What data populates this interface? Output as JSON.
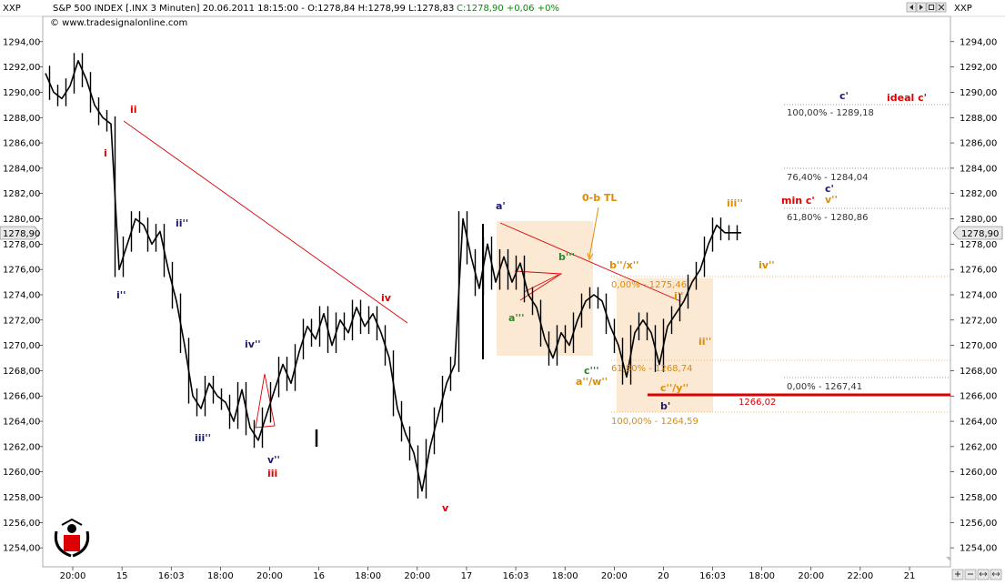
{
  "header": {
    "symbol": "XXP",
    "info": "S&P 500 INDEX [.INX  3 Minuten] 20.06.2011 18:15:00 - O:1278,84 H:1278,99 L:1278,83",
    "close_info": "C:1278,90 +0,06 +0%",
    "copyright": "© www.tradesignalonline.com"
  },
  "colors": {
    "price": "#000000",
    "red": "#dd0000",
    "navy": "#1a1a6e",
    "orange": "#e08c00",
    "green": "#2a8a2a",
    "peach": "#fbe3c9"
  },
  "chart_data": {
    "type": "line",
    "symbol": "XXP",
    "ylim": [
      1252.5,
      1296.0
    ],
    "x_ticks": [
      "20:00",
      "15",
      "16:03",
      "18:00",
      "20:00",
      "16",
      "18:00",
      "20:00",
      "17",
      "16:03",
      "18:00",
      "20:00",
      "20",
      "16:03",
      "18:00",
      "20:00",
      "22:00",
      "21"
    ],
    "y_ticks": [
      "1254,00",
      "1256,00",
      "1258,00",
      "1260,00",
      "1262,00",
      "1264,00",
      "1266,00",
      "1268,00",
      "1270,00",
      "1272,00",
      "1274,00",
      "1276,00",
      "1278,00",
      "1280,00",
      "1282,00",
      "1284,00",
      "1286,00",
      "1288,00",
      "1290,00",
      "1292,00",
      "1294,00"
    ],
    "last_price": "1278,90",
    "series": [
      {
        "x": [
          0,
          1,
          2,
          3,
          4,
          5,
          6,
          7,
          8,
          9,
          10,
          11,
          12,
          13,
          14,
          15,
          16,
          17,
          18,
          19,
          20,
          21,
          22,
          23,
          24,
          25,
          26,
          27,
          28,
          29,
          30,
          31,
          32,
          33,
          34,
          35,
          36,
          37,
          38,
          39,
          40,
          41,
          42,
          43,
          44,
          45,
          46,
          47,
          48,
          49,
          50,
          51,
          52,
          53,
          54,
          55,
          56,
          57,
          58,
          59,
          60,
          61,
          62,
          63,
          64,
          65,
          66,
          67,
          68,
          69,
          70,
          71,
          72,
          73,
          74,
          75,
          76,
          77,
          78,
          79,
          80,
          81,
          82,
          83,
          84,
          85,
          86,
          87,
          88,
          89,
          90,
          91,
          92,
          93,
          94,
          95,
          96,
          97,
          98,
          99,
          100,
          101,
          102,
          103
        ],
        "y": [
          1291.5,
          1290.0,
          1289.5,
          1290.5,
          1292.5,
          1291.0,
          1289.0,
          1288.0,
          1287.5,
          1276.0,
          1278.0,
          1280.0,
          1279.5,
          1278.0,
          1279.0,
          1276.0,
          1273.5,
          1270.0,
          1266.0,
          1265.0,
          1267.0,
          1266.0,
          1265.5,
          1264.0,
          1266.5,
          1263.5,
          1262.5,
          1264.5,
          1266.5,
          1268.5,
          1267.0,
          1269.5,
          1271.5,
          1270.5,
          1272.5,
          1270.0,
          1272.0,
          1271.0,
          1273.0,
          1271.5,
          1272.5,
          1271.0,
          1269.0,
          1265.0,
          1263.0,
          1261.5,
          1258.5,
          1262.0,
          1264.5,
          1267.0,
          1268.5,
          1280.0,
          1277.0,
          1274.5,
          1278.0,
          1275.0,
          1277.0,
          1275.0,
          1276.5,
          1274.0,
          1273.0,
          1270.5,
          1269.0,
          1271.0,
          1270.0,
          1272.0,
          1273.5,
          1274.0,
          1273.5,
          1271.5,
          1270.0,
          1267.5,
          1271.0,
          1272.0,
          1271.0,
          1268.5,
          1271.5,
          1272.5,
          1273.5,
          1275.0,
          1276.0,
          1278.0,
          1279.5,
          1278.9,
          1278.9,
          1278.9,
          1278.9,
          1278.9,
          1278.9,
          1278.9,
          1278.9,
          1278.9,
          1278.9,
          1278.9,
          1278.9,
          1278.9,
          1278.9,
          1278.9,
          1278.9,
          1278.9,
          1278.9,
          1278.9,
          1278.9,
          1278.9
        ]
      }
    ],
    "annotations": {
      "wave_labels": [
        {
          "text": "ii",
          "color": "red"
        },
        {
          "text": "i",
          "color": "red"
        },
        {
          "text": "ii''",
          "color": "navy"
        },
        {
          "text": "i''",
          "color": "navy"
        },
        {
          "text": "iv''",
          "color": "navy"
        },
        {
          "text": "iii''",
          "color": "navy"
        },
        {
          "text": "v''",
          "color": "navy"
        },
        {
          "text": "iii",
          "color": "red"
        },
        {
          "text": "iv",
          "color": "red"
        },
        {
          "text": "v",
          "color": "red"
        },
        {
          "text": "a'",
          "color": "navy"
        },
        {
          "text": "0-b TL",
          "color": "orange"
        },
        {
          "text": "b'''",
          "color": "green"
        },
        {
          "text": "a'''",
          "color": "green"
        },
        {
          "text": "c'''",
          "color": "green"
        },
        {
          "text": "a''/w''",
          "color": "orange"
        },
        {
          "text": "b''/x''",
          "color": "orange"
        },
        {
          "text": "i''",
          "color": "orange"
        },
        {
          "text": "c''/y''",
          "color": "orange"
        },
        {
          "text": "b'",
          "color": "navy"
        },
        {
          "text": "ii''",
          "color": "orange"
        },
        {
          "text": "iii''",
          "color": "orange"
        },
        {
          "text": "iv''",
          "color": "orange"
        },
        {
          "text": "c'",
          "color": "navy"
        },
        {
          "text": "ideal c'",
          "color": "red"
        },
        {
          "text": "min c'",
          "color": "red"
        },
        {
          "text": "c'",
          "color": "navy"
        },
        {
          "text": "v''",
          "color": "orange"
        }
      ],
      "fib_levels": [
        {
          "text": "100,00% - 1289,18",
          "value": 1289.18
        },
        {
          "text": "76,40% - 1284,04",
          "value": 1284.04
        },
        {
          "text": "61,80% - 1280,86",
          "value": 1280.86
        },
        {
          "text": "0,00% - 1267,41",
          "value": 1267.41
        },
        {
          "text": "0,00% - 1275,46",
          "value": 1275.46
        },
        {
          "text": "61,80% - 1268,74",
          "value": 1268.74
        },
        {
          "text": "100,00% - 1264,59",
          "value": 1264.59
        }
      ],
      "support": {
        "text": "1266,02",
        "value": 1266.02
      }
    }
  }
}
